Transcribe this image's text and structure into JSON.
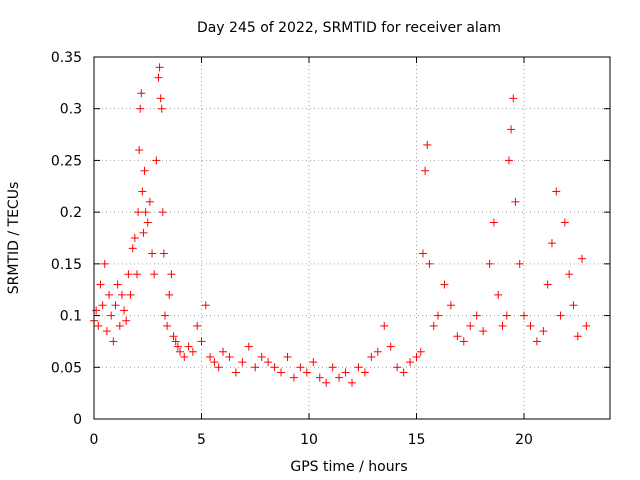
{
  "chart_data": {
    "type": "scatter",
    "title": "Day 245 of 2022, SRMTID for receiver alam",
    "xlabel": "GPS time / hours",
    "ylabel": "SRMTID / TECUs",
    "xlim": [
      0,
      24
    ],
    "ylim": [
      0,
      0.35
    ],
    "xticks": [
      0,
      5,
      10,
      15,
      20
    ],
    "yticks": [
      0,
      0.05,
      0.1,
      0.15,
      0.2,
      0.25,
      0.3,
      0.35
    ],
    "xtick_labels": [
      "0",
      "5",
      "10",
      "15",
      "20"
    ],
    "ytick_labels": [
      "0",
      "0.05",
      "0.1",
      "0.15",
      "0.2",
      "0.25",
      "0.3",
      "0.35"
    ],
    "grid": true,
    "marker": "+",
    "color": "#ff0000",
    "series": [
      {
        "name": "SRMTID",
        "x": [
          0.0,
          0.1,
          0.2,
          0.3,
          0.4,
          0.5,
          0.6,
          0.7,
          0.8,
          0.9,
          1.0,
          1.1,
          1.2,
          1.3,
          1.4,
          1.5,
          1.6,
          1.7,
          1.8,
          1.9,
          2.0,
          2.05,
          2.1,
          2.15,
          2.2,
          2.25,
          2.3,
          2.35,
          2.4,
          2.5,
          2.6,
          2.7,
          2.8,
          2.9,
          3.0,
          3.05,
          3.1,
          3.15,
          3.2,
          3.25,
          3.3,
          3.4,
          3.5,
          3.6,
          3.7,
          3.8,
          3.9,
          4.0,
          4.2,
          4.4,
          4.6,
          4.8,
          5.0,
          5.2,
          5.4,
          5.6,
          5.8,
          6.0,
          6.3,
          6.6,
          6.9,
          7.2,
          7.5,
          7.8,
          8.1,
          8.4,
          8.7,
          9.0,
          9.3,
          9.6,
          9.9,
          10.2,
          10.5,
          10.8,
          11.1,
          11.4,
          11.7,
          12.0,
          12.3,
          12.6,
          12.9,
          13.2,
          13.5,
          13.8,
          14.1,
          14.4,
          14.7,
          15.0,
          15.2,
          15.3,
          15.4,
          15.5,
          15.6,
          15.8,
          16.0,
          16.3,
          16.6,
          16.9,
          17.2,
          17.5,
          17.8,
          18.1,
          18.4,
          18.6,
          18.8,
          19.0,
          19.2,
          19.3,
          19.4,
          19.5,
          19.6,
          19.8,
          20.0,
          20.3,
          20.6,
          20.9,
          21.1,
          21.3,
          21.5,
          21.7,
          21.9,
          22.1,
          22.3,
          22.5,
          22.7,
          22.9
        ],
        "y": [
          0.095,
          0.105,
          0.09,
          0.13,
          0.11,
          0.15,
          0.085,
          0.12,
          0.1,
          0.075,
          0.11,
          0.13,
          0.09,
          0.12,
          0.105,
          0.095,
          0.14,
          0.12,
          0.165,
          0.175,
          0.14,
          0.2,
          0.26,
          0.3,
          0.315,
          0.22,
          0.18,
          0.24,
          0.2,
          0.19,
          0.21,
          0.16,
          0.14,
          0.25,
          0.33,
          0.34,
          0.31,
          0.3,
          0.2,
          0.16,
          0.1,
          0.09,
          0.12,
          0.14,
          0.08,
          0.075,
          0.07,
          0.065,
          0.06,
          0.07,
          0.065,
          0.09,
          0.075,
          0.11,
          0.06,
          0.055,
          0.05,
          0.065,
          0.06,
          0.045,
          0.055,
          0.07,
          0.05,
          0.06,
          0.055,
          0.05,
          0.045,
          0.06,
          0.04,
          0.05,
          0.045,
          0.055,
          0.04,
          0.035,
          0.05,
          0.04,
          0.045,
          0.035,
          0.05,
          0.045,
          0.06,
          0.065,
          0.09,
          0.07,
          0.05,
          0.045,
          0.055,
          0.06,
          0.065,
          0.16,
          0.24,
          0.265,
          0.15,
          0.09,
          0.1,
          0.13,
          0.11,
          0.08,
          0.075,
          0.09,
          0.1,
          0.085,
          0.15,
          0.19,
          0.12,
          0.09,
          0.1,
          0.25,
          0.28,
          0.31,
          0.21,
          0.15,
          0.1,
          0.09,
          0.075,
          0.085,
          0.13,
          0.17,
          0.22,
          0.1,
          0.19,
          0.14,
          0.11,
          0.08,
          0.155,
          0.09
        ]
      }
    ]
  }
}
